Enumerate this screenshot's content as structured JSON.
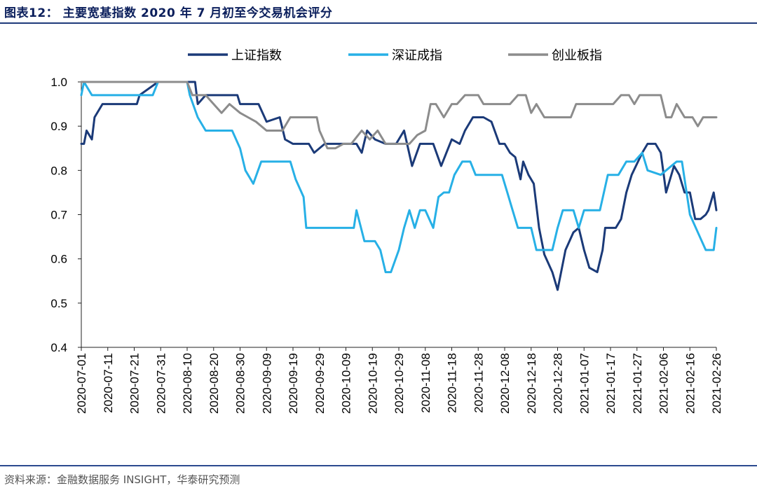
{
  "title": "图表12：  主要宽基指数 2020 年 7 月初至今交易机会评分",
  "source": "资料来源：金融数据服务 INSIGHT，华泰研究预测",
  "colors": {
    "title": "#0b1f5c",
    "rule": "#1f3a7a",
    "axis": "#222222"
  },
  "chart_data": {
    "type": "line",
    "title": "",
    "xlabel": "",
    "ylabel": "",
    "ylim": [
      0.4,
      1.0
    ],
    "yticks": [
      "0.4",
      "0.5",
      "0.6",
      "0.7",
      "0.8",
      "0.9",
      "1.0"
    ],
    "x_tick_labels": [
      "2020-07-01",
      "2020-07-11",
      "2020-07-21",
      "2020-07-31",
      "2020-08-10",
      "2020-08-20",
      "2020-08-30",
      "2020-09-09",
      "2020-09-19",
      "2020-09-29",
      "2020-10-09",
      "2020-10-19",
      "2020-10-29",
      "2020-11-08",
      "2020-11-18",
      "2020-11-28",
      "2020-12-08",
      "2020-12-18",
      "2020-12-28",
      "2021-01-07",
      "2021-01-17",
      "2021-01-27",
      "2021-02-06",
      "2021-02-16",
      "2021-02-26"
    ],
    "x_start": "2020-07-01",
    "x_end_day": 240,
    "legend_position": "top",
    "series": [
      {
        "name": "上证指数",
        "color": "#1b3a78",
        "points": [
          [
            0,
            0.86
          ],
          [
            1,
            0.86
          ],
          [
            2,
            0.89
          ],
          [
            4,
            0.87
          ],
          [
            5,
            0.92
          ],
          [
            8,
            0.95
          ],
          [
            21,
            0.95
          ],
          [
            22,
            0.97
          ],
          [
            29,
            1.0
          ],
          [
            43,
            1.0
          ],
          [
            44,
            0.95
          ],
          [
            47,
            0.97
          ],
          [
            59,
            0.97
          ],
          [
            60,
            0.95
          ],
          [
            67,
            0.95
          ],
          [
            70,
            0.91
          ],
          [
            75,
            0.92
          ],
          [
            77,
            0.87
          ],
          [
            80,
            0.86
          ],
          [
            86,
            0.86
          ],
          [
            88,
            0.84
          ],
          [
            92,
            0.86
          ],
          [
            100,
            0.86
          ],
          [
            104,
            0.86
          ],
          [
            106,
            0.84
          ],
          [
            108,
            0.89
          ],
          [
            111,
            0.87
          ],
          [
            115,
            0.86
          ],
          [
            119,
            0.86
          ],
          [
            122,
            0.89
          ],
          [
            125,
            0.81
          ],
          [
            128,
            0.86
          ],
          [
            133,
            0.86
          ],
          [
            136,
            0.81
          ],
          [
            138,
            0.84
          ],
          [
            140,
            0.87
          ],
          [
            143,
            0.86
          ],
          [
            145,
            0.89
          ],
          [
            148,
            0.92
          ],
          [
            152,
            0.92
          ],
          [
            155,
            0.91
          ],
          [
            158,
            0.86
          ],
          [
            160,
            0.86
          ],
          [
            162,
            0.84
          ],
          [
            164,
            0.83
          ],
          [
            166,
            0.78
          ],
          [
            167,
            0.82
          ],
          [
            169,
            0.79
          ],
          [
            171,
            0.77
          ],
          [
            173,
            0.67
          ],
          [
            175,
            0.61
          ],
          [
            178,
            0.57
          ],
          [
            180,
            0.53
          ],
          [
            183,
            0.62
          ],
          [
            186,
            0.66
          ],
          [
            188,
            0.67
          ],
          [
            190,
            0.62
          ],
          [
            192,
            0.58
          ],
          [
            195,
            0.57
          ],
          [
            197,
            0.62
          ],
          [
            198,
            0.67
          ],
          [
            200,
            0.67
          ],
          [
            202,
            0.67
          ],
          [
            204,
            0.69
          ],
          [
            206,
            0.75
          ],
          [
            208,
            0.79
          ],
          [
            212,
            0.84
          ],
          [
            214,
            0.86
          ],
          [
            217,
            0.86
          ],
          [
            219,
            0.84
          ],
          [
            221,
            0.75
          ],
          [
            224,
            0.81
          ],
          [
            226,
            0.79
          ],
          [
            228,
            0.75
          ],
          [
            230,
            0.75
          ],
          [
            232,
            0.69
          ],
          [
            234,
            0.69
          ],
          [
            236,
            0.7
          ],
          [
            237,
            0.71
          ],
          [
            238,
            0.73
          ],
          [
            239,
            0.75
          ],
          [
            240,
            0.71
          ]
        ]
      },
      {
        "name": "深证成指",
        "color": "#27b0e6",
        "points": [
          [
            0,
            0.97
          ],
          [
            1,
            1.0
          ],
          [
            4,
            0.97
          ],
          [
            20,
            0.97
          ],
          [
            27,
            0.97
          ],
          [
            29,
            1.0
          ],
          [
            40,
            1.0
          ],
          [
            41,
            0.97
          ],
          [
            44,
            0.92
          ],
          [
            47,
            0.89
          ],
          [
            50,
            0.89
          ],
          [
            57,
            0.89
          ],
          [
            60,
            0.85
          ],
          [
            62,
            0.8
          ],
          [
            65,
            0.77
          ],
          [
            68,
            0.82
          ],
          [
            72,
            0.82
          ],
          [
            79,
            0.82
          ],
          [
            81,
            0.78
          ],
          [
            84,
            0.74
          ],
          [
            85,
            0.67
          ],
          [
            96,
            0.67
          ],
          [
            103,
            0.67
          ],
          [
            104,
            0.71
          ],
          [
            107,
            0.64
          ],
          [
            111,
            0.64
          ],
          [
            113,
            0.62
          ],
          [
            115,
            0.57
          ],
          [
            117,
            0.57
          ],
          [
            120,
            0.62
          ],
          [
            122,
            0.67
          ],
          [
            124,
            0.71
          ],
          [
            126,
            0.67
          ],
          [
            128,
            0.71
          ],
          [
            130,
            0.71
          ],
          [
            133,
            0.67
          ],
          [
            135,
            0.74
          ],
          [
            137,
            0.75
          ],
          [
            139,
            0.75
          ],
          [
            141,
            0.79
          ],
          [
            144,
            0.82
          ],
          [
            147,
            0.82
          ],
          [
            149,
            0.79
          ],
          [
            152,
            0.79
          ],
          [
            155,
            0.79
          ],
          [
            159,
            0.79
          ],
          [
            161,
            0.75
          ],
          [
            163,
            0.71
          ],
          [
            165,
            0.67
          ],
          [
            170,
            0.67
          ],
          [
            172,
            0.62
          ],
          [
            175,
            0.62
          ],
          [
            178,
            0.62
          ],
          [
            180,
            0.67
          ],
          [
            182,
            0.71
          ],
          [
            186,
            0.71
          ],
          [
            188,
            0.67
          ],
          [
            190,
            0.71
          ],
          [
            193,
            0.71
          ],
          [
            196,
            0.71
          ],
          [
            199,
            0.79
          ],
          [
            203,
            0.79
          ],
          [
            206,
            0.82
          ],
          [
            209,
            0.82
          ],
          [
            212,
            0.84
          ],
          [
            214,
            0.8
          ],
          [
            219,
            0.79
          ],
          [
            221,
            0.8
          ],
          [
            225,
            0.82
          ],
          [
            227,
            0.82
          ],
          [
            230,
            0.7
          ],
          [
            233,
            0.66
          ],
          [
            236,
            0.62
          ],
          [
            239,
            0.62
          ],
          [
            240,
            0.67
          ]
        ]
      },
      {
        "name": "创业板指",
        "color": "#8c8c8c",
        "points": [
          [
            0,
            1.0
          ],
          [
            8,
            1.0
          ],
          [
            40,
            1.0
          ],
          [
            42,
            0.97
          ],
          [
            47,
            0.97
          ],
          [
            50,
            0.95
          ],
          [
            53,
            0.93
          ],
          [
            56,
            0.95
          ],
          [
            60,
            0.93
          ],
          [
            63,
            0.92
          ],
          [
            66,
            0.91
          ],
          [
            70,
            0.89
          ],
          [
            76,
            0.89
          ],
          [
            79,
            0.92
          ],
          [
            84,
            0.92
          ],
          [
            89,
            0.92
          ],
          [
            90,
            0.89
          ],
          [
            93,
            0.85
          ],
          [
            96,
            0.85
          ],
          [
            99,
            0.86
          ],
          [
            102,
            0.86
          ],
          [
            106,
            0.89
          ],
          [
            109,
            0.87
          ],
          [
            112,
            0.89
          ],
          [
            115,
            0.86
          ],
          [
            117,
            0.86
          ],
          [
            120,
            0.86
          ],
          [
            124,
            0.86
          ],
          [
            127,
            0.88
          ],
          [
            130,
            0.89
          ],
          [
            132,
            0.95
          ],
          [
            134,
            0.95
          ],
          [
            137,
            0.92
          ],
          [
            140,
            0.95
          ],
          [
            142,
            0.95
          ],
          [
            145,
            0.97
          ],
          [
            150,
            0.97
          ],
          [
            152,
            0.95
          ],
          [
            157,
            0.95
          ],
          [
            162,
            0.95
          ],
          [
            165,
            0.97
          ],
          [
            168,
            0.97
          ],
          [
            170,
            0.93
          ],
          [
            172,
            0.95
          ],
          [
            175,
            0.92
          ],
          [
            180,
            0.92
          ],
          [
            185,
            0.92
          ],
          [
            187,
            0.95
          ],
          [
            190,
            0.95
          ],
          [
            194,
            0.95
          ],
          [
            198,
            0.95
          ],
          [
            201,
            0.95
          ],
          [
            204,
            0.97
          ],
          [
            207,
            0.97
          ],
          [
            209,
            0.95
          ],
          [
            211,
            0.97
          ],
          [
            216,
            0.97
          ],
          [
            219,
            0.97
          ],
          [
            221,
            0.92
          ],
          [
            223,
            0.92
          ],
          [
            225,
            0.95
          ],
          [
            228,
            0.92
          ],
          [
            231,
            0.92
          ],
          [
            233,
            0.9
          ],
          [
            235,
            0.92
          ],
          [
            238,
            0.92
          ],
          [
            240,
            0.92
          ]
        ]
      }
    ]
  }
}
